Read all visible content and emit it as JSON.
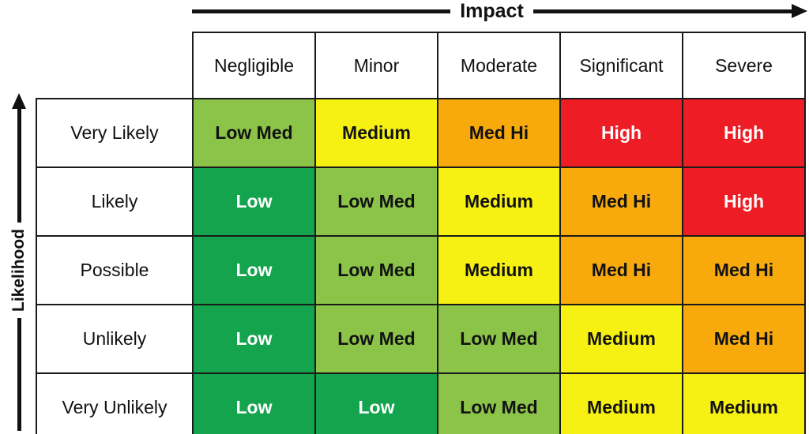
{
  "page": {
    "background": "#ffffff",
    "axis_color": "#111111",
    "grid_color": "#1a1a1a"
  },
  "axes": {
    "x": {
      "label": "Impact",
      "direction": "right"
    },
    "y": {
      "label": "Likelihood",
      "direction": "up"
    }
  },
  "chart_data": {
    "type": "heatmap",
    "x_label": "Impact",
    "y_label": "Likelihood",
    "columns": [
      "Negligible",
      "Minor",
      "Moderate",
      "Significant",
      "Severe"
    ],
    "rows": [
      "Very Likely",
      "Likely",
      "Possible",
      "Unlikely",
      "Very Unlikely"
    ],
    "values": [
      [
        "Low Med",
        "Medium",
        "Med Hi",
        "High",
        "High"
      ],
      [
        "Low",
        "Low Med",
        "Medium",
        "Med Hi",
        "High"
      ],
      [
        "Low",
        "Low Med",
        "Medium",
        "Med Hi",
        "Med Hi"
      ],
      [
        "Low",
        "Low Med",
        "Low Med",
        "Medium",
        "Med Hi"
      ],
      [
        "Low",
        "Low",
        "Low Med",
        "Medium",
        "Medium"
      ]
    ],
    "level_colors": {
      "Low": {
        "bg": "#14A44D",
        "text": "#FFFFFF"
      },
      "Low Med": {
        "bg": "#8CC449",
        "text": "#121212"
      },
      "Medium": {
        "bg": "#F6F112",
        "text": "#121212"
      },
      "Med Hi": {
        "bg": "#F8AA0D",
        "text": "#121212"
      },
      "High": {
        "bg": "#EE1C24",
        "text": "#FFFFFF"
      }
    },
    "legend": "none",
    "grid": true
  }
}
